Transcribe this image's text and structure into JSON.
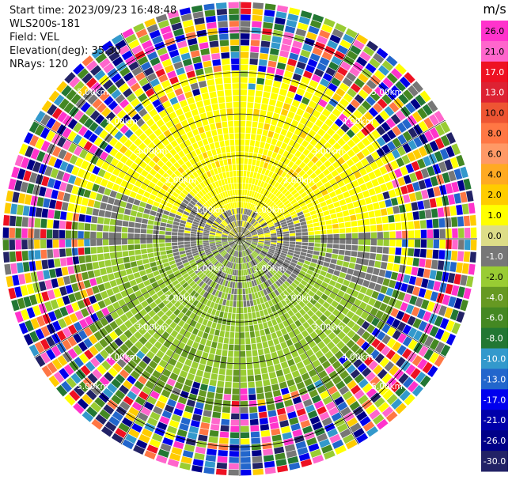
{
  "info": {
    "start_time": "Start time: 2023/09/23 16:48:48",
    "instrument": "WLS200s-181",
    "field": "Field: VEL",
    "elevation": "Elevation(deg): 35.30",
    "nrays": "NRays: 120"
  },
  "chart_data": {
    "type": "heatmap",
    "projection": "polar-ppi",
    "unit": "m/s",
    "range_rings_km": [
      1.0,
      2.0,
      3.0,
      4.0,
      5.0
    ],
    "range_ring_labels": [
      "1.00km",
      "2.00km",
      "3.00km",
      "4.00km",
      "5.00km"
    ],
    "max_range_km": 5.7,
    "n_rays": 120,
    "colorbar": {
      "title": "m/s",
      "tick_labels": [
        "26.0",
        "21.0",
        "17.0",
        "13.0",
        "10.0",
        "8.0",
        "6.0",
        "4.0",
        "2.0",
        "1.0",
        "0.0",
        "-1.0",
        "-2.0",
        "-4.0",
        "-6.0",
        "-8.0",
        "-10.0",
        "-13.0",
        "-17.0",
        "-21.0",
        "-26.0",
        "-30.0"
      ],
      "colors": [
        "#ff33cc",
        "#ff66cc",
        "#ee1122",
        "#dd2233",
        "#ee5533",
        "#ff7744",
        "#ff9966",
        "#ffaa22",
        "#ffcc00",
        "#ffff00",
        "#dddd88",
        "#777777",
        "#99cc33",
        "#669922",
        "#448822",
        "#227733",
        "#3399cc",
        "#2266cc",
        "#0000ee",
        "#0000aa",
        "#000088",
        "#222266"
      ]
    },
    "field_pattern": {
      "inner_gray_km": 0.7,
      "structured_km": 3.6,
      "noise_start_km": 4.2,
      "positive_color": "#ffff00",
      "negative_color": "#99cc33",
      "noise_colors": [
        "#ff33cc",
        "#ff66cc",
        "#ee1122",
        "#ff7744",
        "#ffcc00",
        "#ffff00",
        "#777777",
        "#99cc33",
        "#448822",
        "#227733",
        "#3399cc",
        "#2266cc",
        "#0000ee",
        "#000088",
        "#222266"
      ]
    }
  }
}
